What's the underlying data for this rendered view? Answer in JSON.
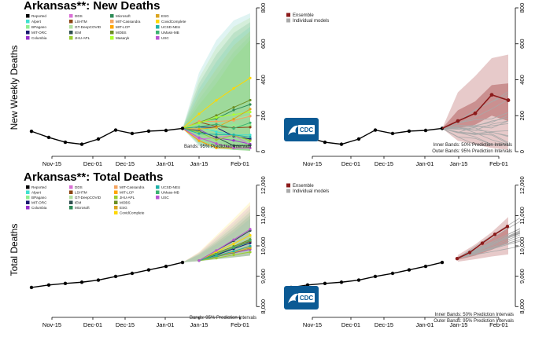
{
  "colors": {
    "reported": "#000000",
    "ensemble": "#8b1a1a",
    "individual": "#a9a9a9",
    "cdc_blue": "#0b5a94",
    "ensemble_band": "#c98a8a"
  },
  "icons": [
    "cdc-logo"
  ],
  "legend_models": [
    {
      "name": "Reported",
      "color": "#000000"
    },
    {
      "name": "Alpert",
      "color": "#40e0d0"
    },
    {
      "name": "BPagano",
      "color": "#90ee90"
    },
    {
      "name": "MIT-ORC",
      "color": "#191970"
    },
    {
      "name": "Columbia",
      "color": "#9932cc"
    },
    {
      "name": "DDS",
      "color": "#da70d6"
    },
    {
      "name": "LSHTM",
      "color": "#8b4513"
    },
    {
      "name": "GT-DeepCOVID",
      "color": "#b0e0a0"
    },
    {
      "name": "IEM",
      "color": "#2f4f4f"
    },
    {
      "name": "JHU-APL",
      "color": "#9acd32"
    },
    {
      "name": "Microsoft",
      "color": "#2e8b57"
    },
    {
      "name": "MIT-Cassandra",
      "color": "#f4a460"
    },
    {
      "name": "MIT-LCP",
      "color": "#ffa500"
    },
    {
      "name": "MOBS",
      "color": "#6b8e23"
    },
    {
      "name": "Masaryk",
      "color": "#adff2f"
    },
    {
      "name": "ESG",
      "color": "#daa520"
    },
    {
      "name": "CovidComplete",
      "color": "#ffd700"
    },
    {
      "name": "UCSD-NEU",
      "color": "#20b2aa"
    },
    {
      "name": "UMass-MB",
      "color": "#3cb371"
    },
    {
      "name": "USC",
      "color": "#ba55d3"
    }
  ],
  "legend_total_order": [
    "Reported",
    "Alpert",
    "BPagano",
    "MIT-ORC",
    "Columbia",
    "DDS",
    "LSHTM",
    "GT-DeepCOVID",
    "IEM",
    "Microsoft",
    "MIT-Cassandra",
    "MIT-LCP",
    "JHU-APL",
    "MOBS",
    "ESG",
    "CovidComplete",
    "UCSD-NEU",
    "UMass-MB",
    "USC"
  ],
  "ensemble_legend": [
    {
      "name": "Ensemble",
      "color": "#8b1a1a"
    },
    {
      "name": "Individual models",
      "color": "#a9a9a9"
    }
  ],
  "logo_text": "CDC",
  "chart_data": [
    {
      "id": "new_left",
      "type": "line",
      "title": "Arkansas**: New Deaths",
      "ylabel": "New Weekly Deaths",
      "x_ticks": [
        "Nov-15",
        "Dec-01",
        "Dec-15",
        "Jan-01",
        "Jan-15",
        "Feb-01"
      ],
      "ylim": [
        0,
        800
      ],
      "y_ticks": [
        "0",
        "200",
        "400",
        "600",
        "800"
      ],
      "reported": [
        113,
        79,
        52,
        41,
        70,
        120,
        101,
        114,
        118,
        129
      ],
      "band_note": "Bands: 95% Prediction Intervals"
    },
    {
      "id": "new_right",
      "type": "line",
      "ylim": [
        0,
        800
      ],
      "y_ticks": [
        "0",
        "200",
        "400",
        "600",
        "800"
      ],
      "x_ticks": [
        "Nov-15",
        "Dec-01",
        "Dec-15",
        "Jan-01",
        "Jan-15",
        "Feb-01"
      ],
      "reported": [
        113,
        79,
        52,
        41,
        70,
        120,
        101,
        114,
        118,
        129
      ],
      "ensemble": [
        170,
        213,
        316,
        286
      ],
      "band_note_1": "Inner Bands: 50% Prediction Intervals",
      "band_note_2": "Outer Bands: 95% Prediction Intervals"
    },
    {
      "id": "total_left",
      "type": "line",
      "title": "Arkansas**: Total Deaths",
      "ylabel": "Total Deaths",
      "x_ticks": [
        "Nov-15",
        "Dec-01",
        "Dec-15",
        "Jan-01",
        "Jan-15",
        "Feb-01"
      ],
      "ylim": [
        7800,
        12200
      ],
      "y_ticks": [
        "8,000",
        "9,000",
        "10,000",
        "11,000",
        "12,000"
      ],
      "reported": [
        8630,
        8710,
        8762,
        8803,
        8873,
        8993,
        9094,
        9208,
        9326,
        9455
      ],
      "band_note": "Bands: 95% Prediction Intervals"
    },
    {
      "id": "total_right",
      "type": "line",
      "ylim": [
        7800,
        12200
      ],
      "y_ticks": [
        "8,000",
        "9,000",
        "10,000",
        "11,000",
        "12,000"
      ],
      "x_ticks": [
        "Nov-15",
        "Dec-01",
        "Dec-15",
        "Jan-01",
        "Jan-15",
        "Feb-01"
      ],
      "reported": [
        8630,
        8710,
        8762,
        8803,
        8873,
        8993,
        9094,
        9208,
        9326,
        9455
      ],
      "ensemble": [
        9580,
        9780,
        10090,
        10380,
        10640
      ],
      "band_note_1": "Inner Bands: 50% Prediction Intervals",
      "band_note_2": "Outer Bands: 95% Prediction Intervals"
    }
  ]
}
